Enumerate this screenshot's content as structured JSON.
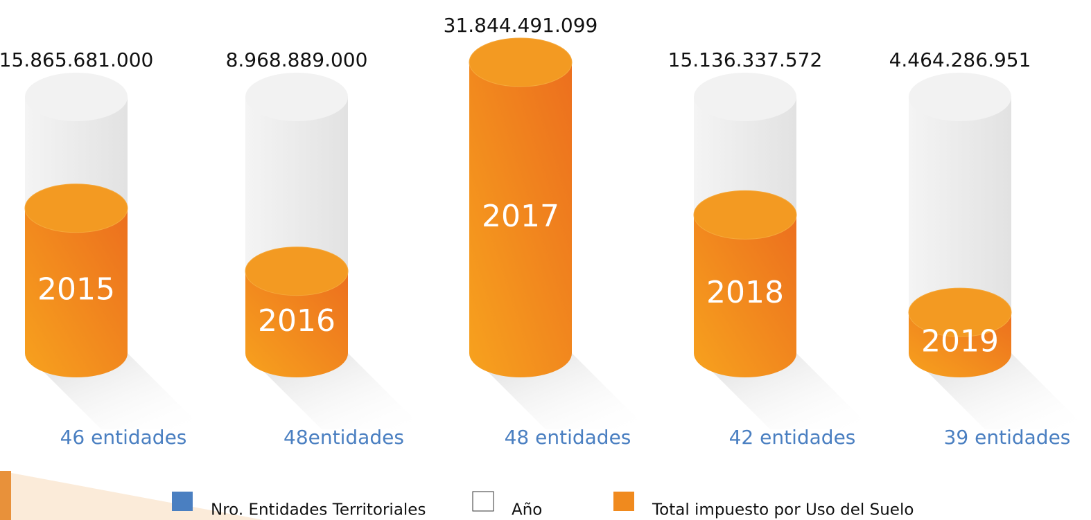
{
  "chart_data": {
    "type": "cylinder",
    "categories": [
      "2015",
      "2016",
      "2017",
      "2018",
      "2019"
    ],
    "values": [
      15865681000,
      8968889000,
      31844491099,
      15136337572,
      4464286951
    ],
    "value_labels": [
      "15.865.681.000",
      "8.968.889.000",
      "31.844.491.099",
      "15.136.337.572",
      "4.464.286.951"
    ],
    "entity_labels": [
      "46 entidades",
      "48entidades",
      "48 entidades",
      "42 entidades",
      "39 entidades"
    ],
    "color": "#f08a1e",
    "legend": [
      {
        "name": "Nro. Entidades Territoriales",
        "color": "#4a7fc1"
      },
      {
        "name": "Año",
        "color": "#ffffff"
      },
      {
        "name": "Total impuesto por Uso del Suelo",
        "color": "#f08a1e"
      }
    ]
  }
}
